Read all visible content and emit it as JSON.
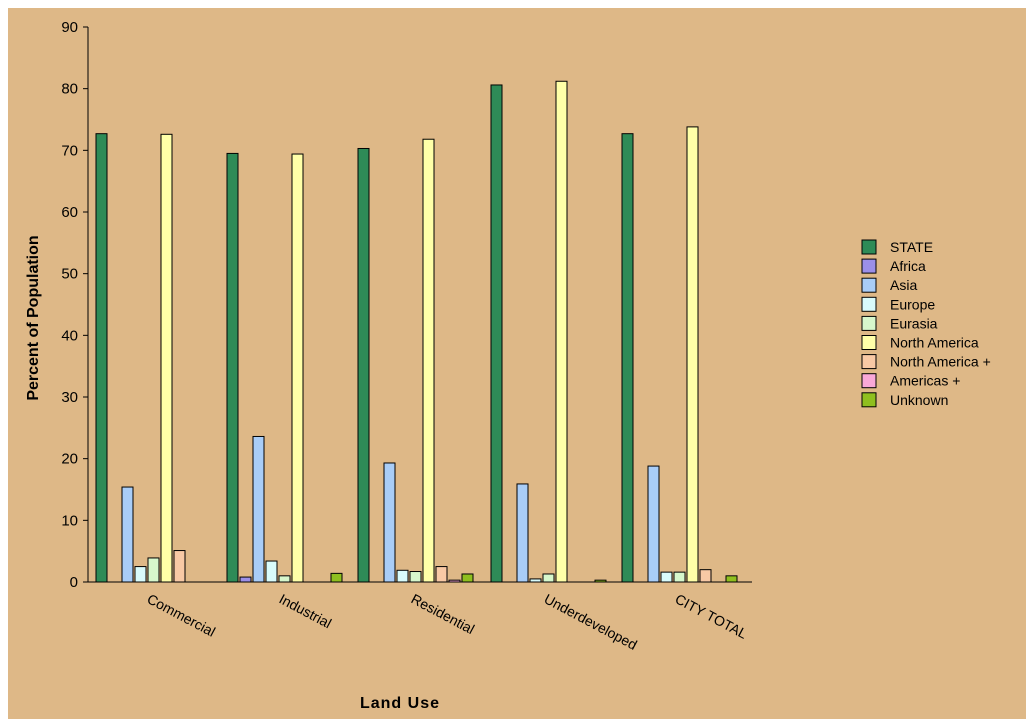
{
  "chart_data": {
    "type": "bar",
    "title": "",
    "xlabel": "Land Use",
    "ylabel": "Percent of Population",
    "ylim": [
      0,
      90
    ],
    "yticks": [
      0,
      10,
      20,
      30,
      40,
      50,
      60,
      70,
      80,
      90
    ],
    "grid": false,
    "legend_placement": "right",
    "categories": [
      "Commercial",
      "Industrial",
      "Residential",
      "Underdeveloped",
      "CITY TOTAL"
    ],
    "series": [
      {
        "name": "STATE",
        "color": "#2e8b57",
        "values": [
          72.7,
          69.5,
          70.3,
          80.6,
          72.7
        ]
      },
      {
        "name": "Africa",
        "color": "#9b8fe8",
        "values": [
          0.0,
          0.8,
          0.0,
          0.0,
          0.0
        ]
      },
      {
        "name": "Asia",
        "color": "#a9cdf7",
        "values": [
          15.4,
          23.6,
          19.3,
          15.9,
          18.8
        ]
      },
      {
        "name": "Europe",
        "color": "#d9fbfb",
        "values": [
          2.5,
          3.4,
          1.9,
          0.5,
          1.6
        ]
      },
      {
        "name": "Eurasia",
        "color": "#d7f7cc",
        "values": [
          3.9,
          1.0,
          1.7,
          1.3,
          1.6
        ]
      },
      {
        "name": "North America",
        "color": "#ffffa8",
        "values": [
          72.6,
          69.4,
          71.8,
          81.2,
          73.8
        ]
      },
      {
        "name": "North America +",
        "color": "#f8c9a5",
        "values": [
          5.1,
          0.0,
          2.5,
          0.0,
          2.0
        ]
      },
      {
        "name": "Americas +",
        "color": "#f9a8d8",
        "values": [
          0.0,
          0.0,
          0.3,
          0.0,
          0.0
        ]
      },
      {
        "name": "Unknown",
        "color": "#8fbf1f",
        "values": [
          0.0,
          1.4,
          1.3,
          0.3,
          1.0
        ]
      }
    ]
  },
  "style": {
    "background": "#deb887"
  }
}
